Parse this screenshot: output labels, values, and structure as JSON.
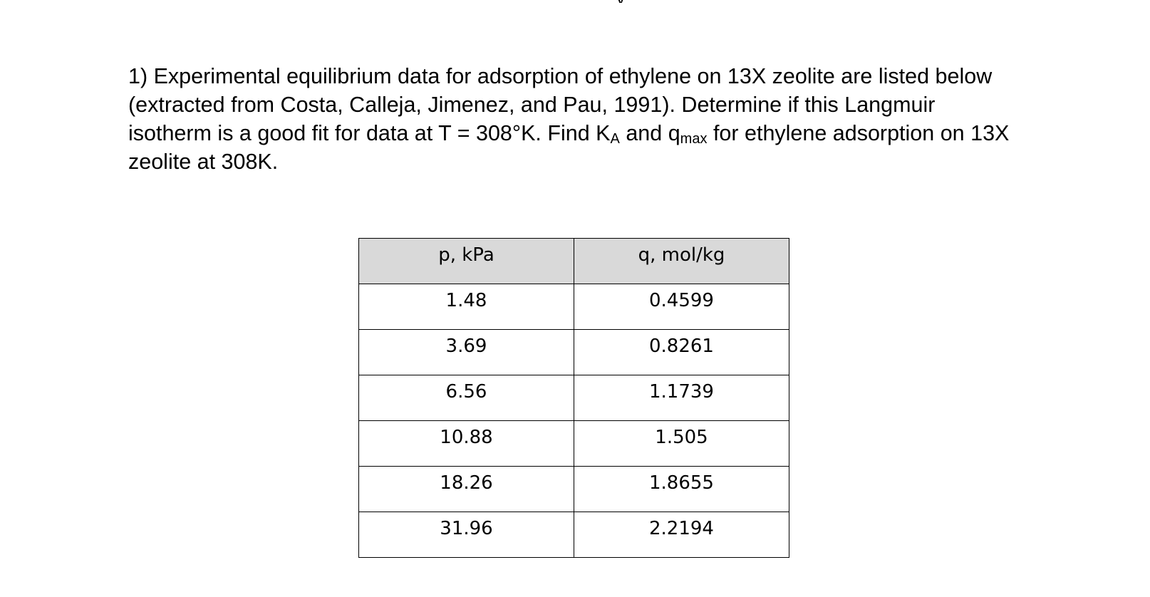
{
  "problem": {
    "text_part1": "1) Experimental equilibrium data for adsorption of ethylene on 13X zeolite are listed below (extracted from Costa, Calleja, Jimenez, and Pau, 1991). Determine if this Langmuir isotherm is a good fit for data at T = 308°K. Find K",
    "ka_subscript": "A",
    "text_part2": " and q",
    "qmax_subscript": "max",
    "text_part3": " for ethylene adsorption on 13X zeolite at 308K."
  },
  "table": {
    "headers": [
      "p, kPa",
      "q, mol/kg"
    ],
    "rows": [
      [
        "1.48",
        "0.4599"
      ],
      [
        "3.69",
        "0.8261"
      ],
      [
        "6.56",
        "1.1739"
      ],
      [
        "10.88",
        "1.505"
      ],
      [
        "18.26",
        "1.8655"
      ],
      [
        "31.96",
        "2.2194"
      ]
    ]
  },
  "colors": {
    "header_background": "#d9d9d9",
    "border": "#000000"
  }
}
